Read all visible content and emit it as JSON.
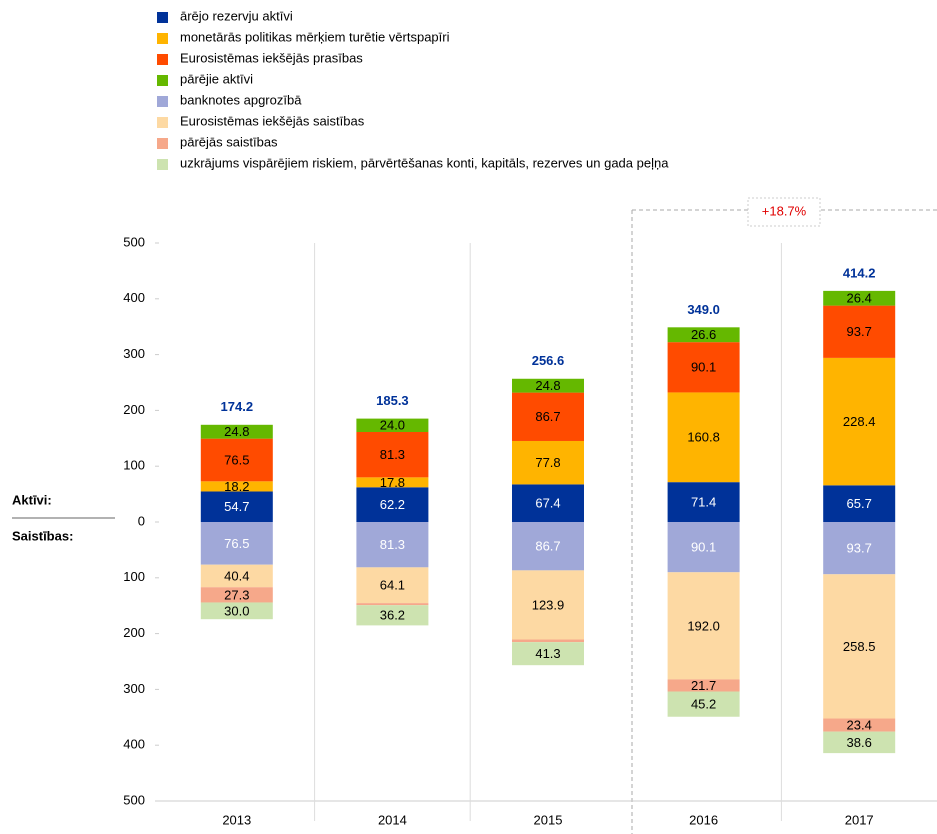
{
  "chart_data": {
    "type": "stacked_bar",
    "categories": [
      "2013",
      "2014",
      "2015",
      "2016",
      "2017"
    ],
    "series": [
      {
        "name": "ārējo rezervju aktīvi",
        "color": "#003299",
        "label_color": "#ffffff",
        "values": [
          54.7,
          62.2,
          67.4,
          71.4,
          65.7
        ],
        "value_labels": [
          "54.7",
          "62.2",
          "67.4",
          "71.4",
          "65.7"
        ]
      },
      {
        "name": "monetārās politikas mērķiem turētie vērtspapīri",
        "color": "#ffb400",
        "label_color": "#000000",
        "values": [
          18.2,
          17.8,
          77.8,
          160.8,
          228.4
        ],
        "value_labels": [
          "18.2",
          "17.8",
          "77.8",
          "160.8",
          "228.4"
        ]
      },
      {
        "name": "Eurosistēmas iekšējās prasības",
        "color": "#ff4b00",
        "label_color": "#000000",
        "values": [
          76.5,
          81.3,
          86.7,
          90.1,
          93.7
        ],
        "value_labels": [
          "76.5",
          "81.3",
          "86.7",
          "90.1",
          "93.7"
        ]
      },
      {
        "name": "pārējie aktīvi",
        "color": "#65b800",
        "label_color": "#000000",
        "values": [
          24.8,
          24.0,
          24.8,
          26.6,
          26.4
        ],
        "value_labels": [
          "24.8",
          "24.0",
          "24.8",
          "26.6",
          "26.4"
        ]
      },
      {
        "name": "banknotes apgrozībā",
        "color": "#a0a8d8",
        "label_color": "#ffffff",
        "values": [
          -76.5,
          -81.3,
          -86.7,
          -90.1,
          -93.7
        ],
        "value_labels": [
          "76.5",
          "81.3",
          "86.7",
          "90.1",
          "93.7"
        ]
      },
      {
        "name": "Eurosistēmas iekšējās saistības",
        "color": "#fdd9a3",
        "label_color": "#000000",
        "values": [
          -40.4,
          -64.1,
          -123.9,
          -192.0,
          -258.5
        ],
        "value_labels": [
          "40.4",
          "64.1",
          "123.9",
          "192.0",
          "258.5"
        ]
      },
      {
        "name": "pārējās saistības",
        "color": "#f6a88a",
        "label_color": "#000000",
        "values": [
          -27.3,
          -3.7,
          -4.7,
          -21.7,
          -23.4
        ],
        "value_labels": [
          "27.3",
          null,
          null,
          "21.7",
          "23.4"
        ]
      },
      {
        "name": "uzkrājums vispārējiem riskiem, pārvērtēšanas konti, kapitāls, rezerves un gada peļņa",
        "color": "#cde3b0",
        "label_color": "#000000",
        "values": [
          -30.0,
          -36.2,
          -41.3,
          -45.2,
          -38.6
        ],
        "value_labels": [
          "30.0",
          "36.2",
          "41.3",
          "45.2",
          "38.6"
        ]
      }
    ],
    "totals": [
      174.2,
      185.3,
      256.6,
      349.0,
      414.2
    ],
    "total_labels": [
      "174.2",
      "185.3",
      "256.6",
      "349.0",
      "414.2"
    ],
    "total_color": "#003299",
    "annotation": "+18.7%",
    "assets_label": "Aktīvi:",
    "liabilities_label": "Saistības:",
    "ylim": [
      -500,
      500
    ],
    "yticks": [
      500,
      400,
      300,
      200,
      100,
      0,
      {
        "value": -100,
        "label": "100"
      },
      {
        "value": -200,
        "label": "200"
      },
      {
        "value": -300,
        "label": "300"
      },
      {
        "value": -400,
        "label": "400"
      },
      {
        "value": -500,
        "label": "500"
      }
    ],
    "grid": true
  }
}
